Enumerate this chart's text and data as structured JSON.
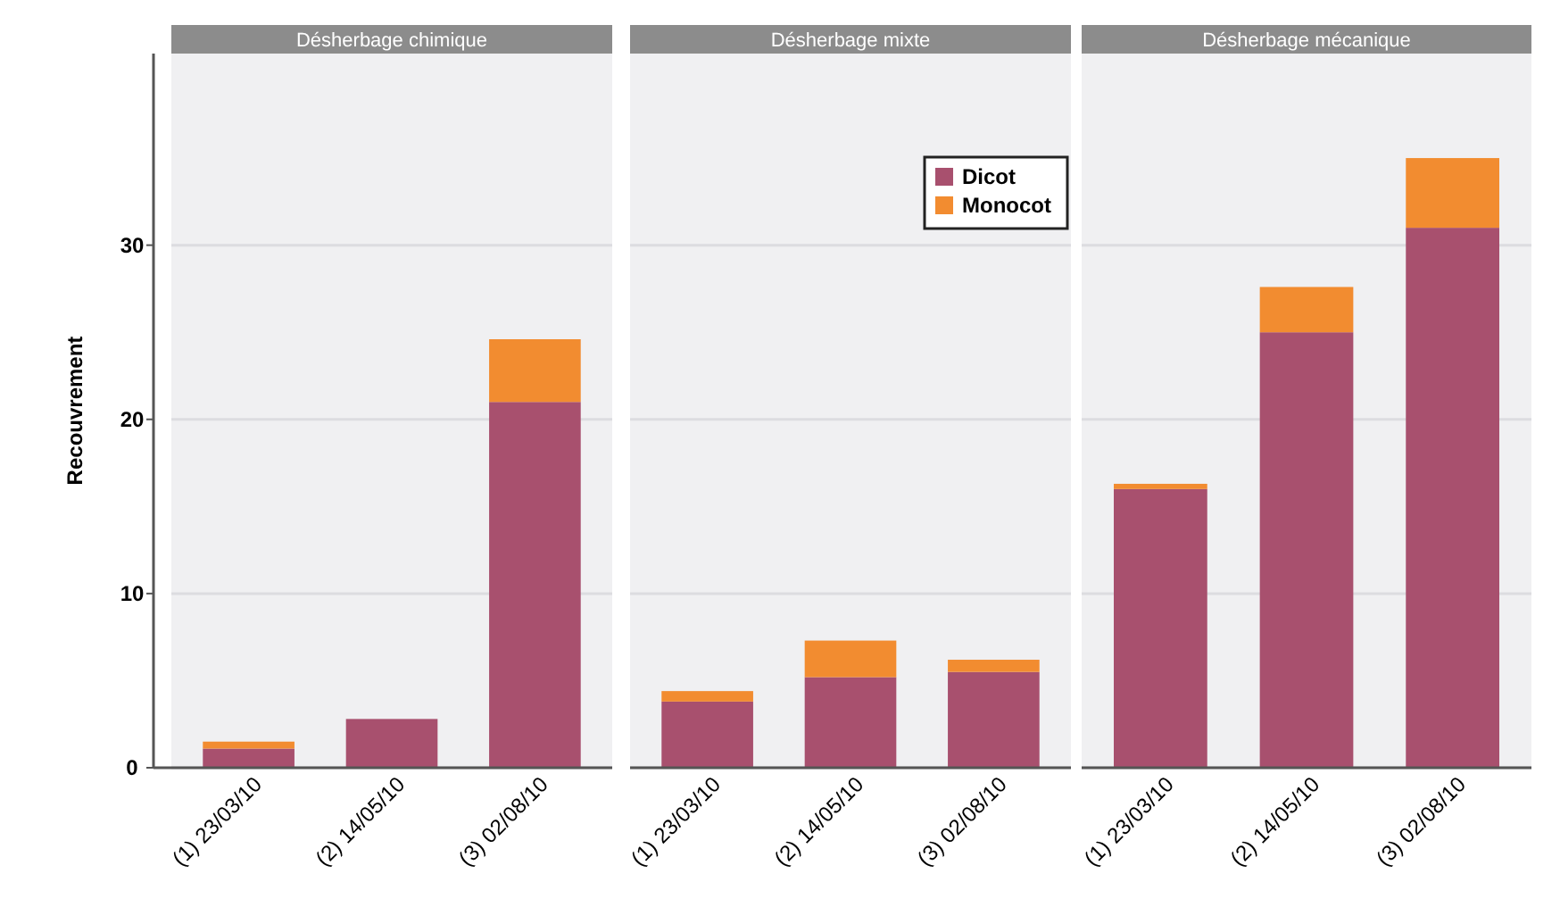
{
  "chart_data": [
    {
      "type": "bar",
      "title": "Désherbage chimique",
      "ylabel": "Recouvrement",
      "categories": [
        "(1) 23/03/10",
        "(2) 14/05/10",
        "(3) 02/08/10"
      ],
      "stacked": true,
      "ylim": [
        0,
        41
      ],
      "yticks": [
        0,
        10,
        20,
        30
      ],
      "grid": "y",
      "series": [
        {
          "color": "#a8506e",
          "values": [
            1.1,
            2.8,
            21
          ]
        },
        {
          "color": "#f28c30",
          "values": [
            0.4,
            0,
            3.6
          ]
        }
      ]
    },
    {
      "type": "bar",
      "title": "Désherbage mixte",
      "categories": [
        "(1) 23/03/10",
        "(2) 14/05/10",
        "(3) 02/08/10"
      ],
      "stacked": true,
      "ylim": [
        0,
        41
      ],
      "yticks": [
        0,
        10,
        20,
        30
      ],
      "grid": "y",
      "tick_labels": "x",
      "legend": "top right",
      "series": [
        {
          "name": "Dicot",
          "color": "#a8506e",
          "values": [
            3.8,
            5.2,
            5.5
          ]
        },
        {
          "name": "Monocot",
          "color": "#f28c30",
          "values": [
            0.6,
            2.1,
            0.7
          ]
        }
      ]
    },
    {
      "type": "bar",
      "title": "Désherbage mécanique",
      "categories": [
        "(1) 23/03/10",
        "(2) 14/05/10",
        "(3) 02/08/10"
      ],
      "stacked": true,
      "ylim": [
        0,
        41
      ],
      "yticks": [
        0,
        10,
        20,
        30
      ],
      "grid": "y",
      "tick_labels": "x",
      "series": [
        {
          "color": "#a8506e",
          "values": [
            16,
            25,
            31
          ]
        },
        {
          "color": "#f28c30",
          "values": [
            0.3,
            2.6,
            4
          ]
        }
      ]
    }
  ]
}
